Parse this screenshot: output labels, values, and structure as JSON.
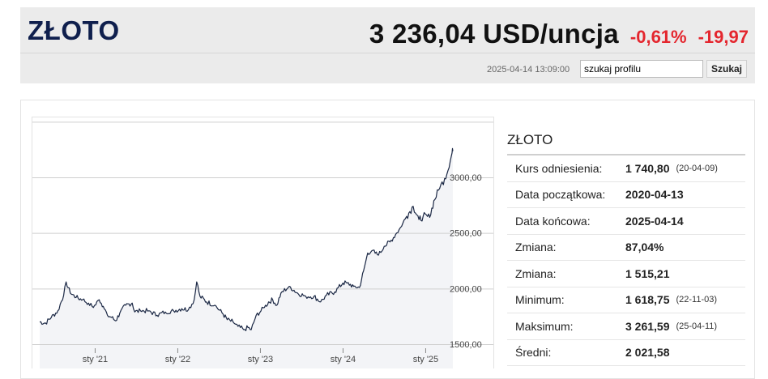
{
  "header": {
    "title": "ZŁOTO",
    "price": "3 236,04 USD/uncja",
    "change_pct": "-0,61%",
    "change_abs": "-19,97",
    "timestamp": "2025-04-14 13:09:00",
    "colors": {
      "negative": "#e4262e",
      "title": "#0f1f4d"
    }
  },
  "search": {
    "placeholder": "szukaj profilu",
    "value": "szukaj profilu",
    "button_label": "Szukaj"
  },
  "stats": {
    "title": "ZŁOTO",
    "rows": [
      {
        "label": "Kurs odniesienia:",
        "value": "1 740,80",
        "date": "(20-04-09)"
      },
      {
        "label": "Data początkowa:",
        "value": "2020-04-13",
        "date": ""
      },
      {
        "label": "Data końcowa:",
        "value": "2025-04-14",
        "date": ""
      },
      {
        "label": "Zmiana:",
        "value": "87,04%",
        "date": ""
      },
      {
        "label": "Zmiana:",
        "value": "1 515,21",
        "date": ""
      },
      {
        "label": "Minimum:",
        "value": "1 618,75",
        "date": "(22-11-03)"
      },
      {
        "label": "Maksimum:",
        "value": "3 261,59",
        "date": "(25-04-11)"
      },
      {
        "label": "Średni:",
        "value": "2 021,58",
        "date": ""
      }
    ]
  },
  "chart_data": {
    "type": "area",
    "x_ticks": [
      "sty '21",
      "sty '22",
      "sty '23",
      "sty '24",
      "sty '25"
    ],
    "y_ticks": [
      "1500,00",
      "2000,00",
      "2500,00",
      "3000,00"
    ],
    "ylim": [
      1500,
      3000
    ],
    "grid": true,
    "line_color": "#1a2744",
    "fill_color": "#f3f4f7",
    "series": [
      {
        "x": [
          2020.28,
          2020.35,
          2020.42,
          2020.5,
          2020.57,
          2020.6,
          2020.65,
          2020.72,
          2020.8,
          2020.87,
          2020.93,
          2021.0,
          2021.05,
          2021.1,
          2021.15,
          2021.2,
          2021.25,
          2021.32,
          2021.4,
          2021.43,
          2021.5,
          2021.6,
          2021.7,
          2021.8,
          2021.9,
          2022.0,
          2022.08,
          2022.15,
          2022.18,
          2022.22,
          2022.3,
          2022.4,
          2022.5,
          2022.55,
          2022.62,
          2022.68,
          2022.75,
          2022.8,
          2022.84,
          2022.9,
          2023.0,
          2023.05,
          2023.1,
          2023.15,
          2023.2,
          2023.3,
          2023.4,
          2023.5,
          2023.6,
          2023.68,
          2023.75,
          2023.85,
          2023.95,
          2024.0,
          2024.08,
          2024.15,
          2024.2,
          2024.25,
          2024.3,
          2024.38,
          2024.45,
          2024.52,
          2024.6,
          2024.66,
          2024.72,
          2024.8,
          2024.87,
          2024.92,
          2025.0,
          2025.05,
          2025.12,
          2025.18,
          2025.22,
          2025.25,
          2025.27,
          2025.28
        ],
        "y": [
          1700,
          1690,
          1740,
          1800,
          1940,
          2060,
          1960,
          1920,
          1900,
          1870,
          1830,
          1900,
          1840,
          1760,
          1740,
          1710,
          1780,
          1850,
          1870,
          1790,
          1800,
          1800,
          1760,
          1790,
          1800,
          1820,
          1810,
          1900,
          2060,
          1930,
          1880,
          1850,
          1770,
          1720,
          1700,
          1660,
          1630,
          1650,
          1630,
          1760,
          1830,
          1880,
          1900,
          1850,
          1960,
          2020,
          1960,
          1930,
          1930,
          1880,
          1940,
          1970,
          2050,
          2050,
          2020,
          2010,
          2160,
          2320,
          2340,
          2300,
          2380,
          2420,
          2500,
          2560,
          2650,
          2740,
          2620,
          2650,
          2640,
          2790,
          2900,
          2990,
          3060,
          3150,
          3220,
          3236
        ]
      }
    ]
  }
}
